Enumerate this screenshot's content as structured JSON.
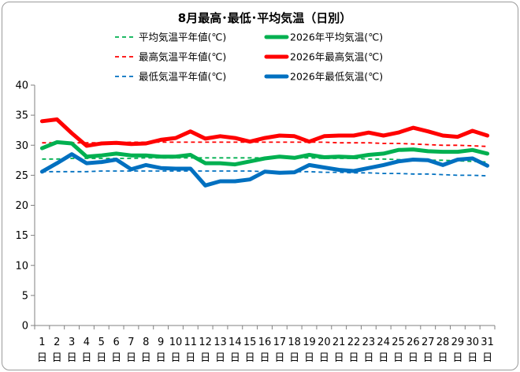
{
  "chart_data": {
    "type": "line",
    "title": "8月最高･最低･平均気温（日別）",
    "xlabel": "",
    "ylabel": "",
    "ylim": [
      0,
      40
    ],
    "yticks": [
      0,
      5,
      10,
      15,
      20,
      25,
      30,
      35,
      40
    ],
    "grid": false,
    "legend_position": "top",
    "categories": [
      "1",
      "2",
      "3",
      "4",
      "5",
      "6",
      "7",
      "8",
      "9",
      "10",
      "11",
      "12",
      "13",
      "14",
      "15",
      "16",
      "17",
      "18",
      "19",
      "20",
      "21",
      "22",
      "23",
      "24",
      "25",
      "26",
      "27",
      "28",
      "29",
      "30",
      "31"
    ],
    "category_suffix": "日",
    "series": [
      {
        "name": "平均気温平年値(℃)",
        "style": "dashed",
        "color": "#00b050",
        "values": [
          27.7,
          27.7,
          27.8,
          27.8,
          27.8,
          27.8,
          27.8,
          27.9,
          27.9,
          27.9,
          27.9,
          27.9,
          27.9,
          27.9,
          27.9,
          27.9,
          27.9,
          27.9,
          27.9,
          27.8,
          27.8,
          27.8,
          27.7,
          27.7,
          27.6,
          27.6,
          27.5,
          27.5,
          27.4,
          27.3,
          27.2
        ]
      },
      {
        "name": "2026年平均気温(℃)",
        "style": "solid",
        "color": "#00b050",
        "values": [
          29.5,
          30.5,
          30.3,
          28.1,
          28.3,
          28.6,
          28.3,
          28.3,
          28.1,
          28.1,
          28.4,
          27.0,
          27.0,
          26.8,
          27.3,
          27.8,
          28.1,
          27.9,
          28.4,
          28.0,
          28.1,
          28.0,
          28.4,
          28.6,
          29.2,
          29.3,
          29.0,
          28.9,
          28.9,
          29.2,
          28.6
        ]
      },
      {
        "name": "最高気温平年値(℃)",
        "style": "dashed",
        "color": "#ff0000",
        "values": [
          30.4,
          30.4,
          30.4,
          30.4,
          30.4,
          30.4,
          30.5,
          30.5,
          30.5,
          30.5,
          30.5,
          30.5,
          30.5,
          30.5,
          30.5,
          30.5,
          30.5,
          30.5,
          30.5,
          30.5,
          30.4,
          30.4,
          30.4,
          30.3,
          30.3,
          30.2,
          30.1,
          30.0,
          30.0,
          29.9,
          29.8
        ]
      },
      {
        "name": "2026年最高気温(℃)",
        "style": "solid",
        "color": "#ff0000",
        "values": [
          34.0,
          34.3,
          32.0,
          29.9,
          30.3,
          30.4,
          30.2,
          30.3,
          30.9,
          31.2,
          32.3,
          31.1,
          31.5,
          31.2,
          30.6,
          31.2,
          31.6,
          31.5,
          30.6,
          31.5,
          31.6,
          31.6,
          32.1,
          31.6,
          32.1,
          32.9,
          32.3,
          31.6,
          31.4,
          32.4,
          31.6
        ]
      },
      {
        "name": "最低気温平年値(℃)",
        "style": "dashed",
        "color": "#0070c0",
        "values": [
          25.6,
          25.6,
          25.6,
          25.6,
          25.7,
          25.7,
          25.7,
          25.7,
          25.7,
          25.7,
          25.7,
          25.7,
          25.7,
          25.7,
          25.7,
          25.6,
          25.6,
          25.6,
          25.6,
          25.5,
          25.5,
          25.4,
          25.4,
          25.3,
          25.3,
          25.2,
          25.2,
          25.1,
          25.0,
          25.0,
          24.9
        ]
      },
      {
        "name": "2026年最低気温(℃)",
        "style": "solid",
        "color": "#0070c0",
        "values": [
          25.6,
          27.0,
          28.5,
          27.0,
          27.2,
          27.6,
          26.0,
          26.7,
          26.2,
          26.1,
          26.1,
          23.3,
          24.0,
          24.0,
          24.3,
          25.6,
          25.4,
          25.5,
          26.7,
          26.3,
          25.9,
          25.7,
          26.2,
          26.7,
          27.3,
          27.6,
          27.5,
          26.7,
          27.6,
          27.8,
          26.6
        ]
      }
    ]
  }
}
